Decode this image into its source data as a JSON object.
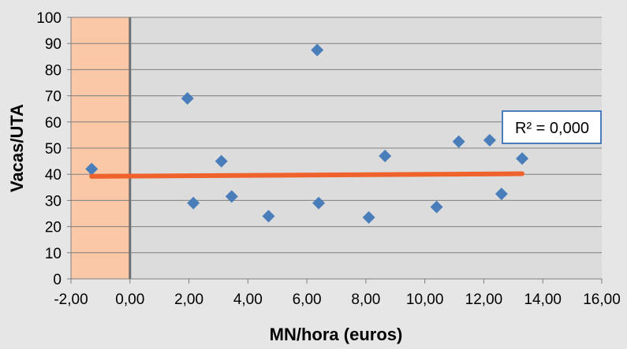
{
  "chart_data": {
    "type": "scatter",
    "xlabel": "MN/hora (euros)",
    "ylabel": "Vacas/UTA",
    "xlim": [
      -2,
      16
    ],
    "ylim": [
      0,
      100
    ],
    "x_ticks": [
      -2,
      0,
      2,
      4,
      6,
      8,
      10,
      12,
      14,
      16
    ],
    "x_tick_labels": [
      "-2,00",
      "0,00",
      "2,00",
      "4,00",
      "6,00",
      "8,00",
      "10,00",
      "12,00",
      "14,00",
      "16,00"
    ],
    "y_ticks": [
      0,
      10,
      20,
      30,
      40,
      50,
      60,
      70,
      80,
      90,
      100
    ],
    "y_tick_labels": [
      "0",
      "10",
      "20",
      "30",
      "40",
      "50",
      "60",
      "70",
      "80",
      "90",
      "100"
    ],
    "grid": true,
    "highlight_region": {
      "x_from": -2,
      "x_to": 0,
      "color": "#fac8a6"
    },
    "series": [
      {
        "marker": "diamond",
        "color": "#4a7ebb",
        "points": [
          {
            "x": -1.3,
            "y": 42
          },
          {
            "x": 1.95,
            "y": 69
          },
          {
            "x": 2.15,
            "y": 29
          },
          {
            "x": 3.1,
            "y": 45
          },
          {
            "x": 3.45,
            "y": 31.5
          },
          {
            "x": 4.7,
            "y": 24
          },
          {
            "x": 6.35,
            "y": 87.5
          },
          {
            "x": 6.4,
            "y": 29
          },
          {
            "x": 8.1,
            "y": 23.5
          },
          {
            "x": 8.65,
            "y": 47
          },
          {
            "x": 10.4,
            "y": 27.5
          },
          {
            "x": 11.15,
            "y": 52.5
          },
          {
            "x": 12.2,
            "y": 53
          },
          {
            "x": 12.6,
            "y": 32.5
          },
          {
            "x": 13.3,
            "y": 46
          }
        ]
      }
    ],
    "trendline": {
      "x": [
        -1.3,
        13.3
      ],
      "y": [
        39.2,
        40.2
      ],
      "color": "#f0622c",
      "r2_label": "R² = 0,000"
    }
  }
}
